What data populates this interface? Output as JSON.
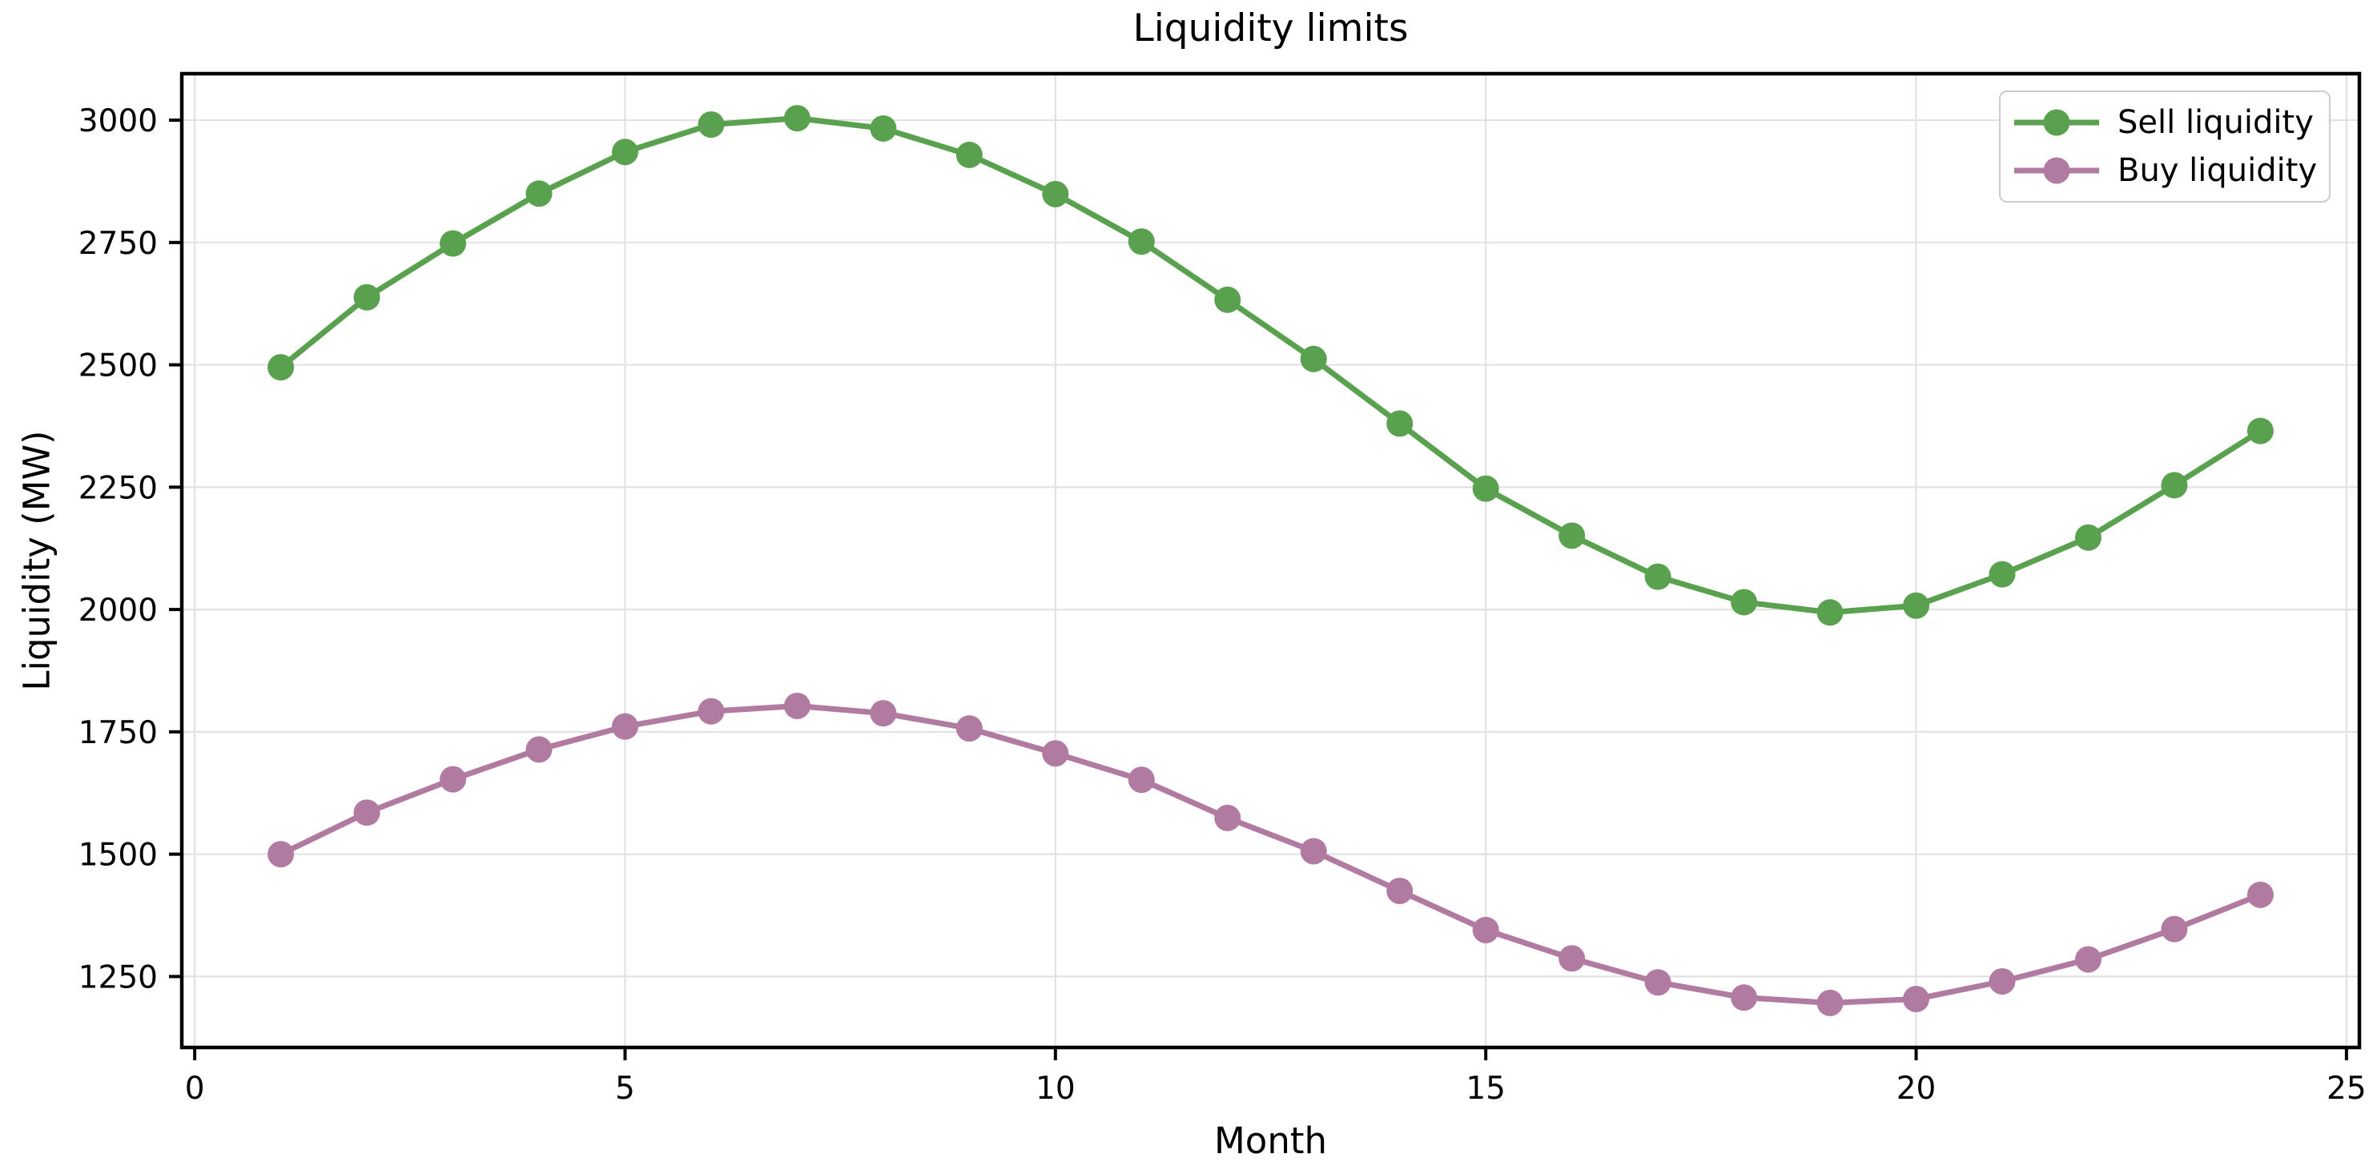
{
  "chart_data": {
    "type": "line",
    "title": "Liquidity limits",
    "xlabel": "Month",
    "ylabel": "Liquidity (MW)",
    "x": [
      1,
      2,
      3,
      4,
      5,
      6,
      7,
      8,
      9,
      10,
      11,
      12,
      13,
      14,
      15,
      16,
      17,
      18,
      19,
      20,
      21,
      22,
      23,
      24
    ],
    "series": [
      {
        "name": "Sell liquidity",
        "color": "#59a14f",
        "values": [
          2495,
          2638,
          2748,
          2850,
          2935,
          2991,
          3004,
          2983,
          2929,
          2849,
          2752,
          2633,
          2512,
          2380,
          2247,
          2151,
          2067,
          2015,
          1994,
          2008,
          2072,
          2147,
          2254,
          2365
        ]
      },
      {
        "name": "Buy liquidity",
        "color": "#b07aa1",
        "values": [
          1500,
          1585,
          1653,
          1714,
          1761,
          1792,
          1803,
          1788,
          1757,
          1706,
          1652,
          1574,
          1506,
          1425,
          1345,
          1287,
          1238,
          1207,
          1196,
          1204,
          1240,
          1285,
          1347,
          1417
        ]
      }
    ],
    "xlim": [
      -0.15,
      25.15
    ],
    "ylim": [
      1105,
      3095
    ],
    "xticks": [
      0,
      5,
      10,
      15,
      20,
      25
    ],
    "yticks": [
      1250,
      1500,
      1750,
      2000,
      2250,
      2500,
      2750,
      3000
    ],
    "grid": true,
    "legend_position": "upper right",
    "grid_color": "#e2e2e2",
    "spine_color": "#000000",
    "tick_label_color": "#000000"
  }
}
